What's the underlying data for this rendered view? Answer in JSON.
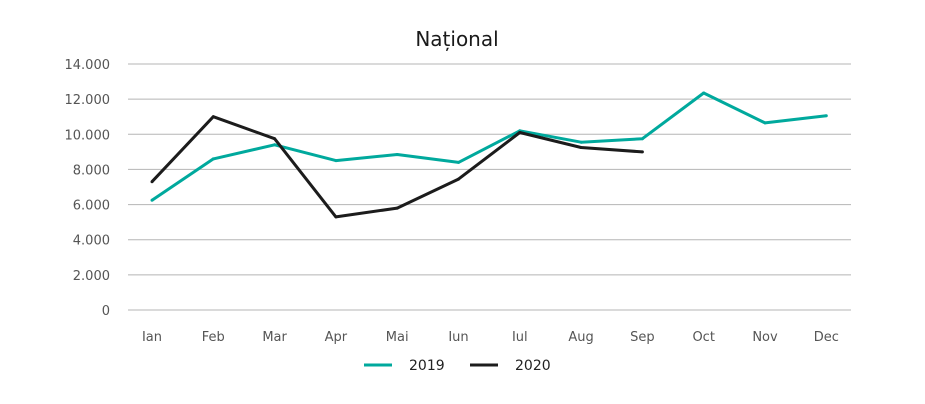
{
  "chart_data": {
    "type": "line",
    "title": "Național",
    "xlabel": "",
    "ylabel": "",
    "categories": [
      "Ian",
      "Feb",
      "Mar",
      "Apr",
      "Mai",
      "Iun",
      "Iul",
      "Aug",
      "Sep",
      "Oct",
      "Nov",
      "Dec"
    ],
    "y_ticks": [
      0,
      2000,
      4000,
      6000,
      8000,
      10000,
      12000,
      14000
    ],
    "y_tick_labels": [
      "0",
      "2.000",
      "4.000",
      "6.000",
      "8.000",
      "10.000",
      "12.000",
      "14.000"
    ],
    "ylim": [
      0,
      14000
    ],
    "grid": true,
    "legend_position": "bottom",
    "series": [
      {
        "name": "2019",
        "color": "#00a99d",
        "values": [
          6250,
          8600,
          9400,
          8500,
          8850,
          8400,
          10200,
          9550,
          9750,
          12350,
          10650,
          11050
        ]
      },
      {
        "name": "2020",
        "color": "#1c1c1c",
        "values": [
          7300,
          11000,
          9750,
          5300,
          5800,
          7450,
          10100,
          9250,
          9000,
          null,
          null,
          null
        ]
      }
    ]
  }
}
